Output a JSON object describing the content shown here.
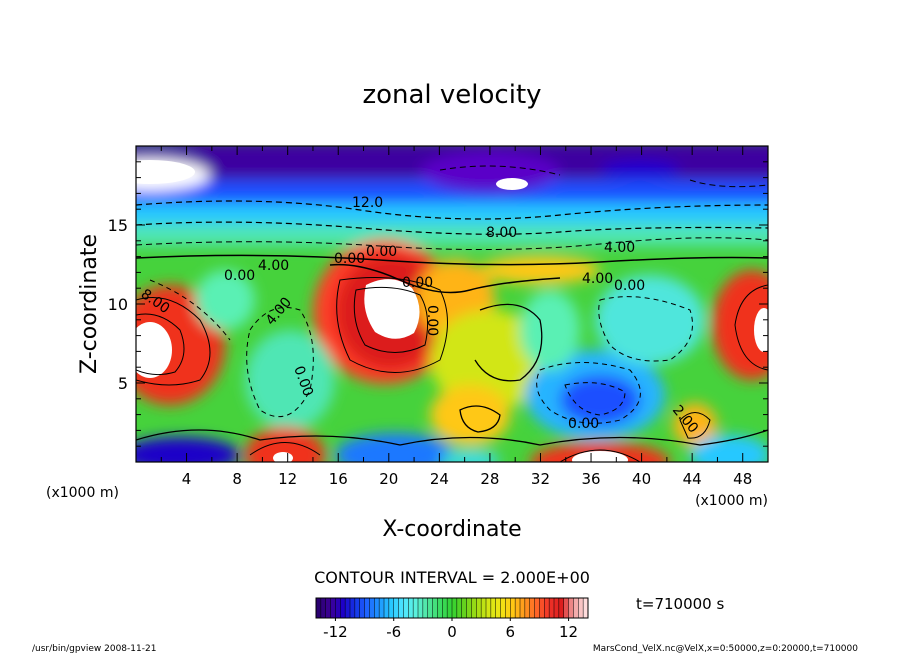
{
  "chart_data": {
    "type": "heatmap",
    "title": "zonal velocity",
    "xlabel": "X-coordinate",
    "ylabel": "Z-coordinate",
    "x_unit": "(x1000 m)",
    "y_unit": "(x1000 m)",
    "xlim": [
      0,
      50
    ],
    "ylim": [
      0,
      20
    ],
    "x_ticks": [
      "4",
      "8",
      "12",
      "16",
      "20",
      "24",
      "28",
      "32",
      "36",
      "40",
      "44",
      "48"
    ],
    "y_ticks": [
      "5",
      "10",
      "15"
    ],
    "contour_interval_text": "CONTOUR INTERVAL = 2.000E+00",
    "contour_labels": [
      "12.0",
      "8.00",
      "0.00",
      "0.00",
      "4.00",
      "0.00",
      "0.00",
      "8.00",
      "4.00",
      "4.00",
      "0.00",
      "0.00",
      "0.00",
      "2.00",
      "0.00",
      "4.00"
    ],
    "colorbar": {
      "min": -14,
      "max": 14,
      "ticks": [
        "-12",
        "-6",
        "0",
        "6",
        "12"
      ],
      "colors": [
        "#2a0070",
        "#3c0096",
        "#1e00c8",
        "#1432e6",
        "#1e64ff",
        "#1e96ff",
        "#28c8ff",
        "#50e6ff",
        "#5af0dc",
        "#50e6a0",
        "#3cdc64",
        "#32d232",
        "#64d21e",
        "#a0dc14",
        "#d2e614",
        "#f0e614",
        "#ffc814",
        "#ff961e",
        "#ff6428",
        "#f03228",
        "#dc1e1e",
        "#f0a0a0",
        "#ffdcdc"
      ]
    },
    "time_label": "t=710000 s"
  },
  "footer": {
    "left": "/usr/bin/gpview   2008-11-21",
    "right": "MarsCond_VelX.nc@VelX,x=0:50000,z=0:20000,t=710000"
  }
}
